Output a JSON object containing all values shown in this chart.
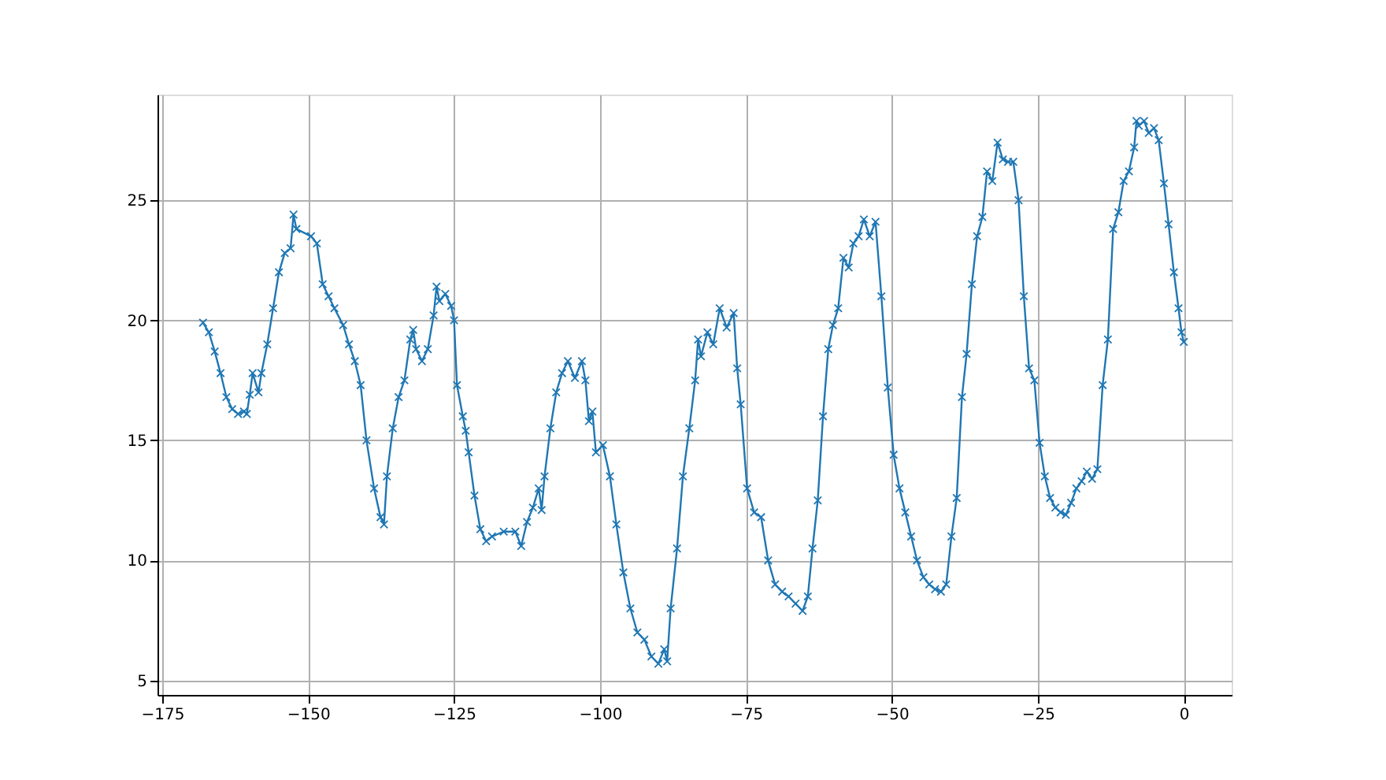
{
  "chart_data": {
    "type": "line",
    "marker": "cross",
    "grid": true,
    "xlim": [
      -175.8,
      8.2
    ],
    "ylim": [
      4.4,
      29.4
    ],
    "xticks": [
      -175,
      -150,
      -125,
      -100,
      -75,
      -50,
      -25,
      0
    ],
    "yticks": [
      5,
      10,
      15,
      20,
      25
    ],
    "series": [
      {
        "color": "#1f77b4",
        "x": [
          -168,
          -167,
          -166,
          -165,
          -164,
          -163,
          -162,
          -161,
          -160.5,
          -160,
          -159.5,
          -158.5,
          -158,
          -157,
          -156,
          -155,
          -154,
          -153,
          -152.5,
          -152,
          -149.5,
          -148.5,
          -147.5,
          -146.5,
          -145.5,
          -144,
          -143,
          -142,
          -141,
          -140,
          -138.7,
          -137.6,
          -137,
          -136.5,
          -135.5,
          -134.5,
          -133.5,
          -132.5,
          -132,
          -131.5,
          -130.5,
          -129.5,
          -128.5,
          -128,
          -127.5,
          -126.5,
          -125.5,
          -125,
          -124.5,
          -123.5,
          -123,
          -122.5,
          -121.5,
          -120.5,
          -119.5,
          -118.5,
          -116.5,
          -114.5,
          -113.5,
          -112.5,
          -111.5,
          -110.5,
          -110,
          -109.5,
          -108.5,
          -107.5,
          -106.5,
          -105.5,
          -104.3,
          -103.1,
          -102.5,
          -101.9,
          -101.3,
          -100.7,
          -99.5,
          -98.3,
          -97.2,
          -96,
          -94.8,
          -93.6,
          -92.4,
          -91.2,
          -90,
          -89,
          -88.5,
          -87.9,
          -86.8,
          -85.8,
          -84.7,
          -83.7,
          -83.2,
          -82.7,
          -81.6,
          -80.6,
          -79.5,
          -78.3,
          -77.1,
          -76.5,
          -75.9,
          -74.8,
          -73.6,
          -72.4,
          -71.2,
          -70,
          -68.8,
          -67.7,
          -66.5,
          -65.3,
          -64.4,
          -63.6,
          -62.7,
          -61.8,
          -60.9,
          -60.1,
          -59.2,
          -58.3,
          -57.4,
          -56.6,
          -55.7,
          -54.8,
          -53.8,
          -52.8,
          -51.8,
          -50.7,
          -49.7,
          -48.7,
          -47.7,
          -46.7,
          -45.7,
          -44.6,
          -43.6,
          -42.6,
          -41.6,
          -40.7,
          -39.8,
          -38.9,
          -38,
          -37.2,
          -36.3,
          -35.4,
          -34.5,
          -33.7,
          -32.8,
          -31.9,
          -31,
          -30.1,
          -29.2,
          -28.3,
          -27.4,
          -26.5,
          -25.6,
          -24.7,
          -23.8,
          -22.9,
          -22,
          -21.1,
          -20.2,
          -19.3,
          -18.4,
          -17.5,
          -16.6,
          -15.7,
          -14.8,
          -13.9,
          -13,
          -12.1,
          -11.2,
          -10.3,
          -9.4,
          -8.5,
          -8.1,
          -7.7,
          -6.8,
          -6,
          -5.1,
          -4.3,
          -3.4,
          -2.6,
          -1.7,
          -0.9,
          -0.4,
          0
        ],
        "values": [
          19.9,
          19.5,
          18.7,
          17.8,
          16.8,
          16.3,
          16.1,
          16.2,
          16.1,
          16.9,
          17.8,
          17.0,
          17.8,
          19,
          20.5,
          22,
          22.8,
          23.0,
          24.4,
          23.8,
          23.5,
          23.2,
          21.5,
          21,
          20.5,
          19.8,
          19,
          18.3,
          17.3,
          15,
          13,
          11.8,
          11.5,
          13.5,
          15.5,
          16.8,
          17.5,
          19.2,
          19.6,
          18.8,
          18.3,
          18.8,
          20.2,
          21.4,
          20.8,
          21.1,
          20.6,
          20,
          17.3,
          16,
          15.4,
          14.5,
          12.7,
          11.3,
          10.8,
          11,
          11.2,
          11.2,
          10.6,
          11.6,
          12.2,
          13,
          12.1,
          13.5,
          15.5,
          17,
          17.8,
          18.3,
          17.6,
          18.3,
          17.5,
          15.8,
          16.2,
          14.5,
          14.8,
          13.5,
          11.5,
          9.5,
          8,
          7,
          6.7,
          6,
          5.7,
          6.3,
          5.8,
          8,
          10.5,
          13.5,
          15.5,
          17.5,
          19.2,
          18.5,
          19.5,
          19.0,
          20.5,
          19.7,
          20.3,
          18,
          16.5,
          13,
          12,
          11.8,
          10,
          9,
          8.7,
          8.5,
          8.2,
          7.9,
          8.5,
          10.5,
          12.5,
          16,
          18.8,
          19.8,
          20.5,
          22.6,
          22.2,
          23.2,
          23.5,
          24.2,
          23.5,
          24.1,
          21,
          17.2,
          14.4,
          13,
          12,
          11,
          10,
          9.3,
          9,
          8.8,
          8.7,
          9,
          11,
          12.6,
          16.8,
          18.6,
          21.5,
          23.5,
          24.3,
          26.2,
          25.8,
          27.4,
          26.7,
          26.6,
          26.6,
          25,
          21,
          18,
          17.5,
          14.9,
          13.5,
          12.6,
          12.2,
          12.0,
          11.9,
          12.4,
          13,
          13.3,
          13.7,
          13.4,
          13.8,
          17.3,
          19.2,
          23.8,
          24.5,
          25.8,
          26.2,
          27.2,
          28.3,
          28.1,
          28.3,
          27.8,
          28,
          27.5,
          25.7,
          24,
          22,
          20.5,
          19.5,
          19.1
        ]
      }
    ]
  }
}
